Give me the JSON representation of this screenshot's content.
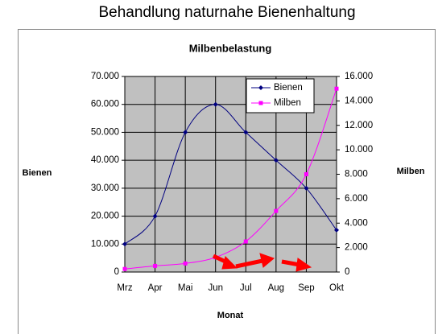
{
  "page_title": "Behandlung naturnahe Bienenhaltung",
  "chart_data": {
    "type": "line",
    "title": "Milbenbelastung",
    "x_label": "Monat",
    "y_label": "Bienen",
    "y2_label": "Milben",
    "categories": [
      "Mrz",
      "Apr",
      "Mai",
      "Jun",
      "Jul",
      "Aug",
      "Sep",
      "Okt"
    ],
    "series": [
      {
        "name": "Bienen",
        "color": "#000080",
        "values": [
          10000,
          20000,
          50000,
          60000,
          50000,
          40000,
          30000,
          15000
        ]
      },
      {
        "name": "Milben",
        "color": "#ff00ff",
        "axis": "y2",
        "values": [
          250,
          500,
          700,
          1200,
          2500,
          5000,
          8000,
          15000
        ]
      }
    ],
    "ylim": [
      0,
      70000
    ],
    "yticks": [
      0,
      {
        "value": 10000,
        "label": "10.000"
      },
      {
        "value": 20000,
        "label": "20.000"
      },
      {
        "value": 30000,
        "label": "30.000"
      },
      {
        "value": 40000,
        "label": "40.000"
      },
      {
        "value": 50000,
        "label": "50.000"
      },
      {
        "value": 60000,
        "label": "60.000"
      },
      {
        "value": 70000,
        "label": "70.000"
      }
    ],
    "y2lim": [
      0,
      16000
    ],
    "y2ticks": [
      0,
      {
        "value": 2000,
        "label": "2.000"
      },
      {
        "value": 4000,
        "label": "4.000"
      },
      {
        "value": 6000,
        "label": "6.000"
      },
      {
        "value": 8000,
        "label": "8.000"
      },
      {
        "value": 10000,
        "label": "10.000"
      },
      {
        "value": 12000,
        "label": "12.000"
      },
      {
        "value": 14000,
        "label": "14.000"
      },
      {
        "value": 16000,
        "label": "16.000"
      }
    ],
    "grid": true,
    "smooth": true,
    "legend": "upper right",
    "plot_background": "#c0c0c0"
  }
}
